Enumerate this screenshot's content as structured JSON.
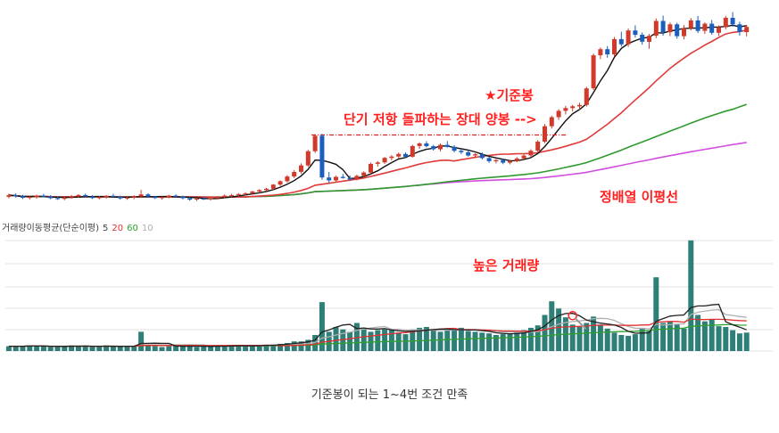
{
  "annotations": {
    "reference_candle": "★기준봉",
    "breakout": "단기 저항 돌파하는 장대 양봉 -->",
    "ma_alignment": "정배열 이평선",
    "high_volume": "높은 거래량"
  },
  "volume_legend": {
    "title": "거래량이동평균(단순이평)",
    "periods": [
      "5",
      "20",
      "60",
      "10"
    ],
    "colors": [
      "#222222",
      "#e03030",
      "#2ea02e",
      "#b0b0b0"
    ]
  },
  "caption": "기준봉이 되는 1~4번 조건 만족",
  "colors": {
    "up": "#d03a2a",
    "down": "#1a5fbf",
    "annotation": "#ff1f1f",
    "ma5": "#111111",
    "ma20": "#e03a3a",
    "ma60": "#2e9a2e",
    "ma120": "#d24de0",
    "volume": "#2e7f78",
    "resistance": "#d82020"
  },
  "chart_data": [
    {
      "type": "candlestick",
      "panel": "price",
      "ohlc": [
        [
          100.0,
          101.6,
          99.2,
          100.8
        ],
        [
          100.8,
          101.8,
          99.6,
          100.3
        ],
        [
          100.3,
          101.0,
          98.9,
          99.5
        ],
        [
          99.5,
          100.6,
          98.7,
          99.9
        ],
        [
          99.9,
          101.1,
          99.1,
          100.6
        ],
        [
          100.6,
          101.5,
          99.7,
          100.1
        ],
        [
          100.1,
          100.9,
          98.8,
          99.3
        ],
        [
          99.3,
          100.2,
          98.5,
          99.0
        ],
        [
          99.0,
          100.3,
          98.3,
          99.7
        ],
        [
          99.7,
          100.9,
          99.0,
          100.4
        ],
        [
          100.4,
          101.3,
          99.6,
          100.9
        ],
        [
          100.9,
          101.6,
          99.9,
          100.2
        ],
        [
          100.2,
          100.8,
          98.9,
          99.4
        ],
        [
          99.4,
          100.3,
          98.7,
          99.8
        ],
        [
          99.8,
          100.9,
          99.1,
          100.5
        ],
        [
          100.5,
          101.5,
          99.7,
          100.0
        ],
        [
          100.0,
          100.6,
          98.6,
          99.2
        ],
        [
          99.2,
          100.1,
          98.5,
          99.6
        ],
        [
          99.6,
          100.8,
          98.8,
          100.2
        ],
        [
          100.2,
          103.5,
          99.4,
          101.2
        ],
        [
          101.2,
          101.8,
          99.5,
          100.1
        ],
        [
          100.1,
          100.5,
          98.9,
          99.4
        ],
        [
          99.4,
          100.2,
          98.6,
          99.8
        ],
        [
          99.8,
          101.0,
          99.2,
          100.6
        ],
        [
          100.6,
          101.3,
          99.8,
          100.2
        ],
        [
          100.2,
          100.6,
          98.7,
          99.3
        ],
        [
          99.3,
          99.9,
          98.0,
          98.6
        ],
        [
          98.6,
          99.5,
          97.9,
          99.1
        ],
        [
          99.1,
          100.0,
          98.4,
          98.8
        ],
        [
          98.8,
          99.7,
          98.1,
          99.3
        ],
        [
          99.3,
          100.4,
          98.7,
          100.0
        ],
        [
          100.0,
          101.2,
          99.3,
          100.6
        ],
        [
          100.6,
          101.5,
          99.8,
          100.9
        ],
        [
          100.9,
          101.9,
          100.1,
          101.4
        ],
        [
          101.4,
          102.3,
          100.6,
          101.8
        ],
        [
          101.8,
          103.0,
          101.0,
          102.7
        ],
        [
          102.7,
          103.9,
          102.0,
          103.4
        ],
        [
          103.4,
          104.6,
          102.8,
          104.1
        ],
        [
          104.1,
          106.5,
          103.5,
          106.2
        ],
        [
          106.2,
          108.4,
          105.4,
          107.9
        ],
        [
          107.9,
          111.0,
          107.2,
          110.3
        ],
        [
          110.3,
          113.5,
          109.4,
          112.6
        ],
        [
          112.6,
          116.9,
          111.6,
          115.9
        ],
        [
          115.9,
          123.8,
          115.1,
          123.1
        ],
        [
          123.1,
          131.7,
          122.2,
          130.9
        ],
        [
          130.9,
          131.9,
          108.7,
          109.8
        ],
        [
          109.8,
          112.6,
          107.0,
          108.3
        ],
        [
          108.3,
          110.7,
          107.4,
          110.1
        ],
        [
          110.1,
          111.6,
          109.2,
          109.5
        ],
        [
          109.5,
          110.8,
          108.0,
          108.8
        ],
        [
          108.8,
          111.2,
          108.3,
          110.6
        ],
        [
          110.6,
          112.9,
          110.0,
          112.3
        ],
        [
          112.3,
          117.3,
          111.7,
          116.7
        ],
        [
          116.7,
          118.1,
          115.3,
          117.4
        ],
        [
          117.4,
          120.2,
          116.7,
          119.7
        ],
        [
          119.7,
          121.1,
          118.4,
          120.4
        ],
        [
          120.4,
          122.4,
          119.5,
          121.7
        ],
        [
          121.7,
          122.5,
          119.8,
          120.3
        ],
        [
          120.3,
          126.3,
          119.8,
          125.7
        ],
        [
          125.7,
          127.6,
          124.3,
          127.0
        ],
        [
          127.0,
          128.1,
          125.0,
          125.6
        ],
        [
          125.6,
          126.3,
          123.4,
          124.1
        ],
        [
          124.1,
          127.0,
          123.0,
          126.3
        ],
        [
          126.3,
          128.2,
          124.9,
          125.3
        ],
        [
          125.3,
          126.1,
          122.5,
          123.3
        ],
        [
          123.3,
          124.5,
          121.6,
          122.6
        ],
        [
          122.6,
          123.6,
          120.3,
          120.9
        ],
        [
          120.9,
          122.1,
          119.7,
          121.5
        ],
        [
          121.5,
          122.5,
          118.9,
          119.6
        ],
        [
          119.6,
          120.4,
          117.2,
          118.0
        ],
        [
          118.0,
          119.2,
          116.9,
          118.6
        ],
        [
          118.6,
          119.4,
          116.5,
          117.3
        ],
        [
          117.3,
          118.7,
          116.4,
          118.1
        ],
        [
          118.1,
          120.1,
          117.5,
          119.4
        ],
        [
          119.4,
          121.5,
          118.7,
          120.9
        ],
        [
          120.9,
          124.1,
          120.0,
          123.3
        ],
        [
          123.3,
          128.7,
          122.6,
          127.9
        ],
        [
          127.9,
          136.9,
          127.1,
          135.7
        ],
        [
          135.7,
          141.1,
          134.6,
          140.3
        ],
        [
          140.3,
          144.4,
          138.9,
          143.5
        ],
        [
          143.5,
          146.0,
          141.7,
          144.9
        ],
        [
          144.9,
          146.6,
          143.2,
          145.8
        ],
        [
          145.8,
          147.6,
          144.1,
          146.5
        ],
        [
          146.5,
          155.7,
          145.7,
          154.9
        ],
        [
          154.9,
          172.5,
          154.1,
          171.6
        ],
        [
          171.6,
          175.6,
          169.7,
          174.7
        ],
        [
          174.7,
          176.3,
          170.4,
          172.1
        ],
        [
          172.1,
          180.9,
          170.9,
          179.8
        ],
        [
          179.8,
          183.6,
          176.0,
          177.2
        ],
        [
          177.2,
          185.2,
          175.9,
          184.2
        ],
        [
          184.2,
          186.8,
          180.6,
          182.0
        ],
        [
          182.0,
          183.2,
          177.0,
          178.5
        ],
        [
          178.5,
          182.4,
          174.9,
          181.5
        ],
        [
          181.5,
          190.3,
          180.3,
          189.0
        ],
        [
          189.0,
          191.7,
          181.6,
          183.3
        ],
        [
          183.3,
          188.2,
          181.3,
          187.3
        ],
        [
          187.3,
          188.1,
          180.0,
          181.3
        ],
        [
          181.3,
          186.9,
          179.7,
          185.4
        ],
        [
          185.4,
          190.5,
          184.2,
          189.3
        ],
        [
          189.3,
          191.6,
          182.9,
          184.0
        ],
        [
          184.0,
          188.3,
          182.4,
          187.6
        ],
        [
          187.6,
          189.5,
          182.0,
          183.0
        ],
        [
          183.0,
          186.8,
          181.4,
          185.8
        ],
        [
          185.8,
          191.6,
          184.8,
          190.6
        ],
        [
          190.6,
          193.5,
          186.1,
          187.3
        ],
        [
          187.3,
          188.6,
          181.6,
          183.4
        ],
        [
          183.4,
          187.0,
          181.2,
          186.0
        ]
      ],
      "volume": [
        6,
        6,
        6,
        7,
        6,
        6,
        5,
        6,
        6,
        7,
        6,
        6,
        5,
        6,
        7,
        6,
        5,
        6,
        6,
        24,
        7,
        6,
        5,
        6,
        7,
        6,
        6,
        5,
        6,
        6,
        7,
        6,
        6,
        7,
        6,
        7,
        7,
        8,
        8,
        9,
        10,
        12,
        12,
        14,
        20,
        61,
        24,
        30,
        27,
        24,
        35,
        28,
        24,
        26,
        27,
        26,
        23,
        21,
        27,
        29,
        30,
        27,
        24,
        27,
        26,
        29,
        25,
        24,
        23,
        22,
        20,
        21,
        22,
        24,
        26,
        29,
        32,
        45,
        62,
        53,
        42,
        33,
        30,
        35,
        43,
        33,
        28,
        23,
        20,
        19,
        21,
        29,
        25,
        92,
        35,
        37,
        33,
        28,
        138,
        45,
        37,
        40,
        31,
        30,
        26,
        22,
        23
      ]
    }
  ]
}
